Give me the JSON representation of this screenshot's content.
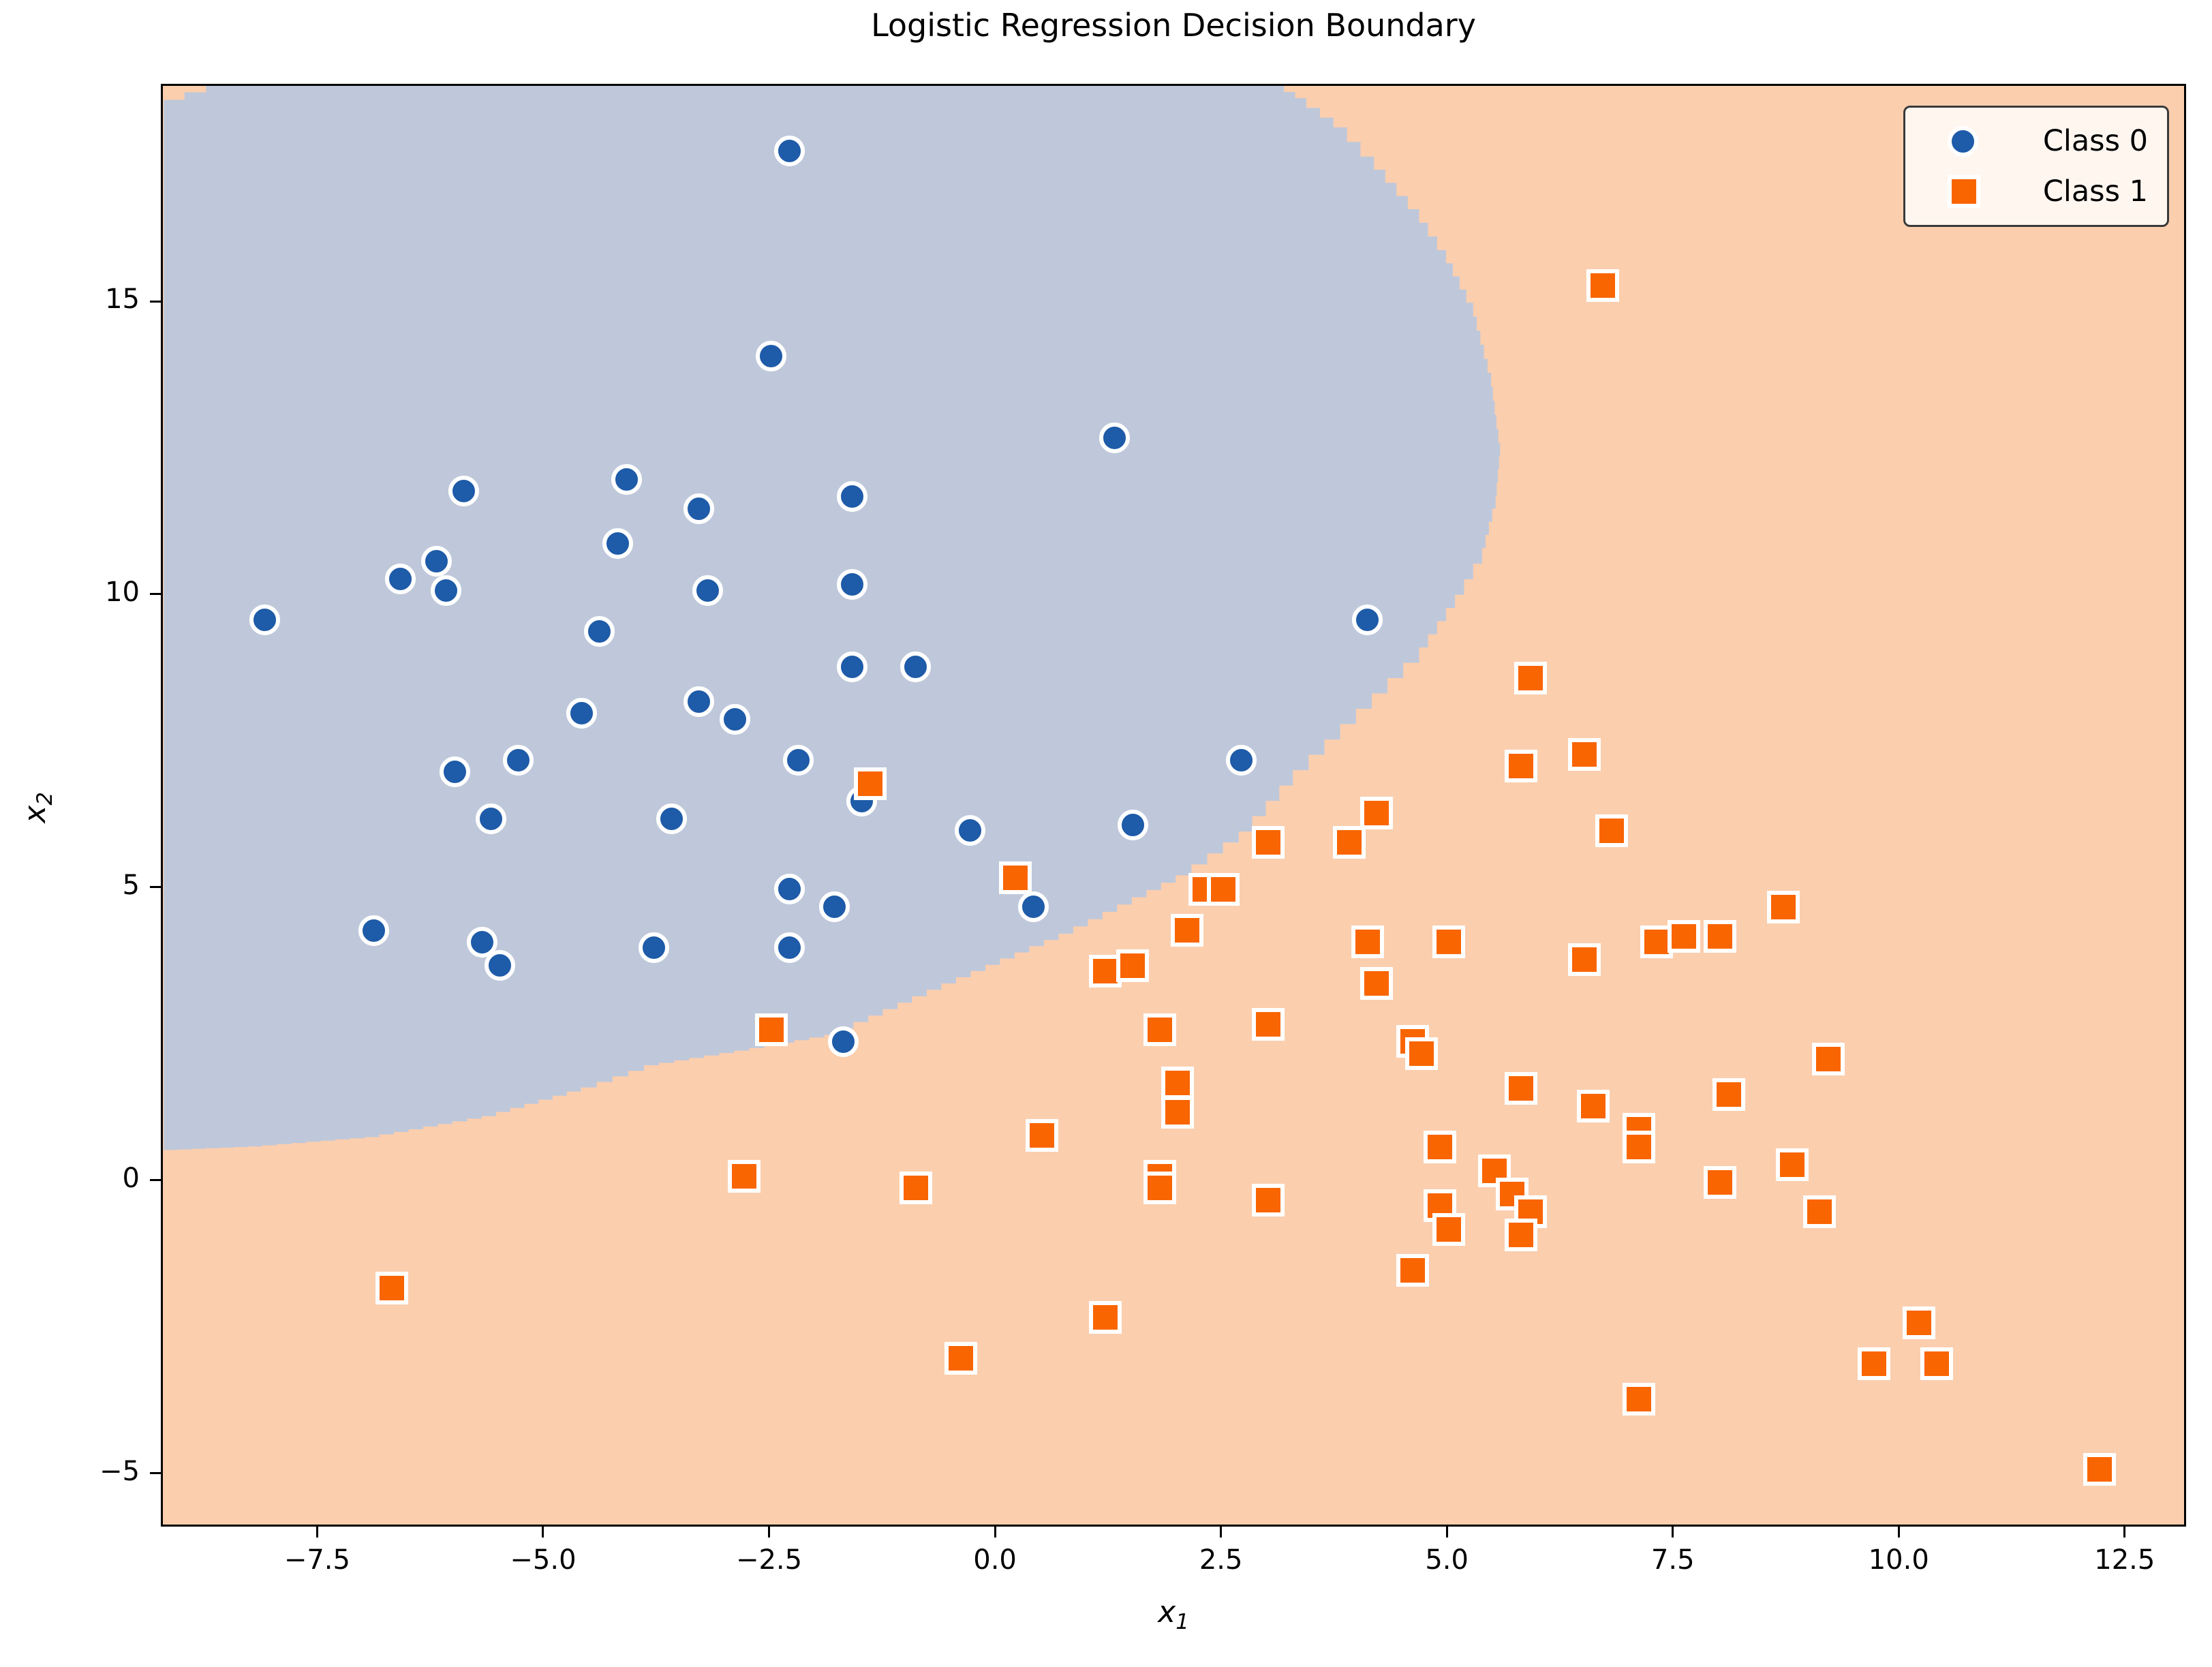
{
  "title": "Logistic Regression Decision Boundary",
  "axes": {
    "xlabel_base": "x",
    "xlabel_sub": "1",
    "ylabel_base": "x",
    "ylabel_sub": "2"
  },
  "legend": {
    "items": [
      {
        "label": "Class 0",
        "marker": "circle",
        "color": "#1e5ba8"
      },
      {
        "label": "Class 1",
        "marker": "square",
        "color": "#f96500"
      }
    ]
  },
  "colors": {
    "region_class0": "#bfc8da",
    "region_class1": "#fbceae",
    "marker_class0": "#1e5ba8",
    "marker_class1": "#f96500",
    "marker_edge": "#ffffff",
    "spine": "#000000"
  },
  "chart_data": {
    "type": "scatter",
    "xlabel": "x_1",
    "ylabel": "x_2",
    "xlim": [
      -9.23,
      13.18
    ],
    "ylim": [
      -5.91,
      18.71
    ],
    "x_ticks": [
      -7.5,
      -5.0,
      -2.5,
      0.0,
      2.5,
      5.0,
      7.5,
      10.0,
      12.5
    ],
    "x_tick_labels": [
      "−7.5",
      "−5.0",
      "−2.5",
      "0.0",
      "2.5",
      "5.0",
      "7.5",
      "10.0",
      "12.5"
    ],
    "y_ticks": [
      -5,
      0,
      5,
      10,
      15
    ],
    "y_tick_labels": [
      "−5",
      "0",
      "5",
      "10",
      "15"
    ],
    "grid": false,
    "legend_position": "upper right",
    "series": [
      {
        "name": "Class 0",
        "marker": "circle",
        "color": "#1e5ba8",
        "edge_color": "#ffffff",
        "points": [
          [
            -5.9,
            11.8
          ],
          [
            -4.1,
            12.0
          ],
          [
            -4.2,
            10.9
          ],
          [
            -2.3,
            17.6
          ],
          [
            -2.5,
            14.1
          ],
          [
            1.3,
            12.7
          ],
          [
            -1.6,
            11.7
          ],
          [
            -3.3,
            11.5
          ],
          [
            -6.6,
            10.3
          ],
          [
            -6.2,
            10.6
          ],
          [
            -6.1,
            10.1
          ],
          [
            -8.1,
            9.6
          ],
          [
            -4.4,
            9.4
          ],
          [
            -4.6,
            8.0
          ],
          [
            -5.3,
            7.2
          ],
          [
            -6.0,
            7.0
          ],
          [
            -5.6,
            6.2
          ],
          [
            -3.6,
            6.2
          ],
          [
            -6.9,
            4.3
          ],
          [
            -5.7,
            4.1
          ],
          [
            -5.5,
            3.7
          ],
          [
            -3.8,
            4.0
          ],
          [
            -3.2,
            10.1
          ],
          [
            -1.6,
            10.2
          ],
          [
            -1.6,
            8.8
          ],
          [
            -0.9,
            8.8
          ],
          [
            -3.3,
            8.2
          ],
          [
            -2.9,
            7.9
          ],
          [
            -2.2,
            7.2
          ],
          [
            -1.5,
            6.5
          ],
          [
            -0.3,
            6.0
          ],
          [
            1.5,
            6.1
          ],
          [
            0.4,
            4.7
          ],
          [
            -2.3,
            5.0
          ],
          [
            -1.8,
            4.7
          ],
          [
            -2.3,
            4.0
          ],
          [
            -1.7,
            2.4
          ],
          [
            4.1,
            9.6
          ],
          [
            2.7,
            7.2
          ]
        ]
      },
      {
        "name": "Class 1",
        "marker": "square",
        "color": "#f96500",
        "edge_color": "#ffffff",
        "points": [
          [
            6.7,
            15.3
          ],
          [
            -1.4,
            6.8
          ],
          [
            0.2,
            5.2
          ],
          [
            1.2,
            3.6
          ],
          [
            1.5,
            3.7
          ],
          [
            1.8,
            2.6
          ],
          [
            -2.5,
            2.6
          ],
          [
            5.9,
            8.6
          ],
          [
            5.8,
            7.1
          ],
          [
            6.5,
            7.3
          ],
          [
            6.8,
            6.0
          ],
          [
            4.2,
            6.3
          ],
          [
            3.9,
            5.8
          ],
          [
            3.0,
            5.8
          ],
          [
            2.3,
            5.0
          ],
          [
            2.5,
            5.0
          ],
          [
            2.1,
            4.3
          ],
          [
            4.1,
            4.1
          ],
          [
            5.0,
            4.1
          ],
          [
            4.2,
            3.4
          ],
          [
            3.0,
            2.7
          ],
          [
            6.5,
            3.8
          ],
          [
            7.3,
            4.1
          ],
          [
            7.6,
            4.2
          ],
          [
            8.0,
            4.2
          ],
          [
            8.7,
            4.7
          ],
          [
            -6.7,
            -1.8
          ],
          [
            -2.8,
            0.1
          ],
          [
            -0.9,
            -0.1
          ],
          [
            0.5,
            0.8
          ],
          [
            2.0,
            1.7
          ],
          [
            2.0,
            1.2
          ],
          [
            1.8,
            0.1
          ],
          [
            1.8,
            -0.1
          ],
          [
            1.2,
            -2.3
          ],
          [
            -0.4,
            -3.0
          ],
          [
            4.6,
            2.4
          ],
          [
            4.7,
            2.2
          ],
          [
            5.8,
            1.6
          ],
          [
            6.6,
            1.3
          ],
          [
            7.1,
            0.9
          ],
          [
            7.1,
            0.6
          ],
          [
            4.9,
            0.6
          ],
          [
            5.5,
            0.2
          ],
          [
            5.7,
            -0.2
          ],
          [
            5.9,
            -0.5
          ],
          [
            5.8,
            -0.9
          ],
          [
            3.0,
            -0.3
          ],
          [
            4.9,
            -0.4
          ],
          [
            5.0,
            -0.8
          ],
          [
            4.6,
            -1.5
          ],
          [
            7.1,
            -3.7
          ],
          [
            9.2,
            2.1
          ],
          [
            8.1,
            1.5
          ],
          [
            8.8,
            0.3
          ],
          [
            8.0,
            0.0
          ],
          [
            9.1,
            -0.5
          ],
          [
            10.2,
            -2.4
          ],
          [
            9.7,
            -3.1
          ],
          [
            10.4,
            -3.1
          ],
          [
            12.2,
            -4.9
          ]
        ]
      }
    ],
    "decision_regions": {
      "class0_color": "#bfc8da",
      "class1_color": "#fbceae",
      "class0_boundary_arc": [
        [
          -9.23,
          0.5
        ],
        [
          -8.3,
          0.56
        ],
        [
          -7.0,
          0.72
        ],
        [
          -5.7,
          1.08
        ],
        [
          -4.6,
          1.57
        ],
        [
          -3.9,
          1.95
        ],
        [
          -2.9,
          2.2
        ],
        [
          -1.9,
          2.47
        ],
        [
          -0.6,
          3.35
        ],
        [
          0.7,
          4.2
        ],
        [
          2.0,
          5.2
        ],
        [
          2.7,
          5.95
        ],
        [
          3.3,
          7.0
        ],
        [
          4.0,
          8.05
        ],
        [
          4.7,
          9.1
        ],
        [
          5.1,
          10.0
        ],
        [
          5.4,
          10.8
        ],
        [
          5.55,
          11.7
        ],
        [
          5.6,
          12.6
        ],
        [
          5.5,
          13.8
        ],
        [
          5.3,
          15.0
        ],
        [
          5.0,
          15.9
        ],
        [
          4.7,
          16.6
        ],
        [
          4.2,
          17.5
        ],
        [
          3.9,
          18.0
        ],
        [
          3.45,
          18.5
        ],
        [
          3.2,
          18.71
        ]
      ],
      "class0_boundary_topleft_notch": [
        [
          -8.76,
          18.71
        ],
        [
          -8.76,
          18.6
        ],
        [
          -9.0,
          18.6
        ],
        [
          -9.0,
          18.47
        ],
        [
          -9.23,
          18.47
        ]
      ]
    }
  }
}
